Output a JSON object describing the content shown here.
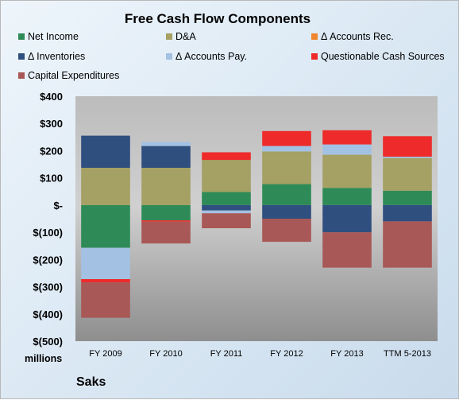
{
  "chart_data": {
    "type": "bar",
    "stacked": true,
    "title": "Free Cash Flow Components",
    "footer": "Saks",
    "unit_label": "millions",
    "categories": [
      "FY 2009",
      "FY 2010",
      "FY 2011",
      "FY 2012",
      "FY 2013",
      "TTM 5-2013"
    ],
    "ylim": [
      -500,
      400
    ],
    "yticks": [
      -500,
      -400,
      -300,
      -200,
      -100,
      0,
      100,
      200,
      300,
      400
    ],
    "ytick_labels": [
      "$(500)",
      "$(400)",
      "$(300)",
      "$(200)",
      "$(100)",
      "$-",
      "$100",
      "$200",
      "$300",
      "$400"
    ],
    "grid": false,
    "legend_position": "top",
    "series": [
      {
        "name": "Net Income",
        "color": "#2e8b57",
        "values": [
          -157,
          -56,
          48,
          77,
          63,
          53
        ]
      },
      {
        "name": "D&A",
        "color": "#a5a063",
        "values": [
          137,
          137,
          118,
          120,
          122,
          120
        ]
      },
      {
        "name": "Δ Accounts Rec.",
        "color": "#f0862d",
        "values": [
          0,
          0,
          0,
          0,
          0,
          0
        ]
      },
      {
        "name": "Δ Inventories",
        "color": "#2f4f7f",
        "values": [
          118,
          80,
          -20,
          -50,
          -100,
          -60
        ]
      },
      {
        "name": "Δ Accounts Pay.",
        "color": "#a3c1e3",
        "values": [
          -115,
          15,
          -10,
          20,
          38,
          5
        ]
      },
      {
        "name": "Questionable Cash Sources",
        "color": "#ee2a2a",
        "values": [
          -12,
          -5,
          28,
          55,
          52,
          75
        ]
      },
      {
        "name": "Capital Expenditures",
        "color": "#a85856",
        "values": [
          -130,
          -80,
          -55,
          -85,
          -130,
          -170
        ]
      }
    ]
  }
}
